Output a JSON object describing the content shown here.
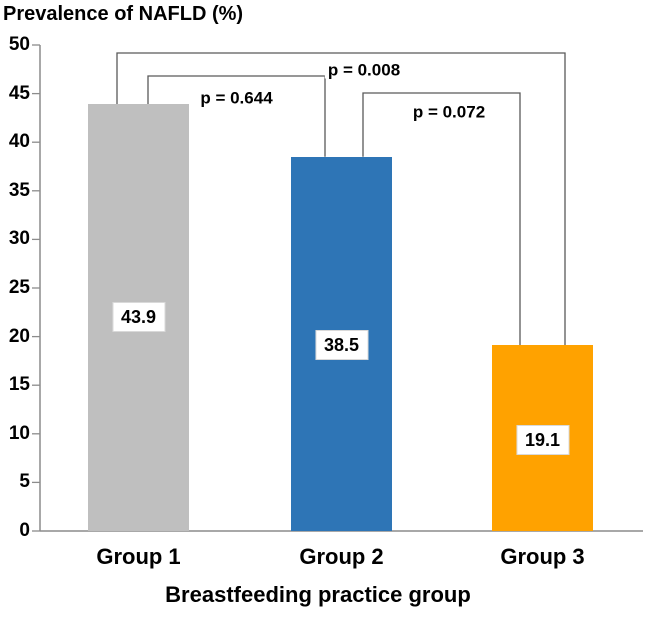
{
  "chart_data": {
    "type": "bar",
    "title": "Prevalence of NAFLD (%)",
    "xlabel": "Breastfeeding practice group",
    "ylabel": "",
    "ylim": [
      0,
      50
    ],
    "ytick_step": 5,
    "grid": false,
    "legend": false,
    "yticks": [
      "50",
      "45",
      "40",
      "35",
      "30",
      "25",
      "20",
      "15",
      "10",
      "5",
      "0"
    ],
    "categories": [
      "Group 1",
      "Group 2",
      "Group 3"
    ],
    "values": [
      43.9,
      38.5,
      19.1
    ],
    "value_labels": [
      "43.9",
      "38.5",
      "19.1"
    ],
    "bar_colors": [
      "#BFBFBF",
      "#2E75B6",
      "#FFA200"
    ],
    "axis_color": "#8C8C8C",
    "bracket_color": "#595959",
    "annotations": [
      {
        "pair": [
          0,
          1
        ],
        "label": "p = 0.644"
      },
      {
        "pair": [
          0,
          2
        ],
        "label": "p = 0.008"
      },
      {
        "pair": [
          1,
          2
        ],
        "label": "p = 0.072"
      }
    ]
  }
}
